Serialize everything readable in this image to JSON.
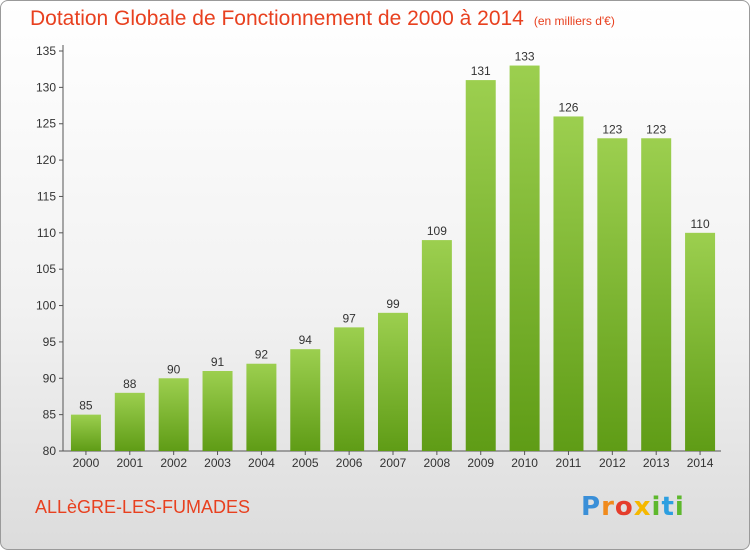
{
  "title": "Dotation Globale de Fonctionnement de 2000 à 2014",
  "unit_note": "(en milliers d'€)",
  "commune": "ALLèGRE-LES-FUMADES",
  "logo": {
    "p": "P",
    "r": "r",
    "o": "o",
    "x": "x",
    "i": "i",
    "t": "t",
    "i2": "i"
  },
  "colors": {
    "bar_top": "#9ccf4f",
    "bar_bottom": "#5f9c16",
    "title": "#e8401f",
    "axis": "#555555"
  },
  "chart_data": {
    "type": "bar",
    "title": "Dotation Globale de Fonctionnement de 2000 à 2014",
    "subtitle": "(en milliers d'€)",
    "categories": [
      "2000",
      "2001",
      "2002",
      "2003",
      "2004",
      "2005",
      "2006",
      "2007",
      "2008",
      "2009",
      "2010",
      "2011",
      "2012",
      "2013",
      "2014"
    ],
    "values": [
      85,
      88,
      90,
      91,
      92,
      94,
      97,
      99,
      109,
      131,
      133,
      126,
      123,
      123,
      110
    ],
    "ylim": [
      80,
      135
    ],
    "yticks": [
      80,
      85,
      90,
      95,
      100,
      105,
      110,
      115,
      120,
      125,
      130,
      135
    ],
    "grid": false,
    "xlabel": "",
    "ylabel": ""
  }
}
